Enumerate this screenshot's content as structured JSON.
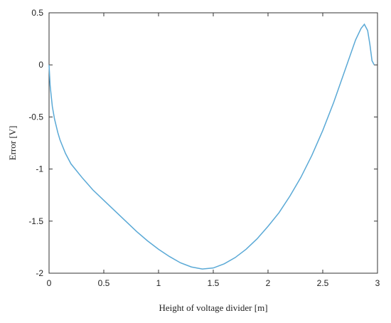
{
  "chart_data": {
    "type": "line",
    "x_label": "Height of voltage divider [m]",
    "y_label": "Error [V]",
    "x": [
      0,
      0.01,
      0.03,
      0.05,
      0.08,
      0.1,
      0.15,
      0.2,
      0.3,
      0.4,
      0.5,
      0.6,
      0.7,
      0.8,
      0.9,
      1.0,
      1.1,
      1.2,
      1.3,
      1.4,
      1.5,
      1.6,
      1.7,
      1.8,
      1.9,
      2.0,
      2.1,
      2.2,
      2.3,
      2.4,
      2.5,
      2.6,
      2.7,
      2.8,
      2.85,
      2.88,
      2.91,
      2.93,
      2.95,
      2.97
    ],
    "series": [
      {
        "color": "#5aa9d6",
        "values": [
          0,
          -0.2,
          -0.4,
          -0.52,
          -0.65,
          -0.72,
          -0.85,
          -0.95,
          -1.08,
          -1.2,
          -1.3,
          -1.4,
          -1.5,
          -1.6,
          -1.69,
          -1.77,
          -1.84,
          -1.9,
          -1.94,
          -1.96,
          -1.95,
          -1.91,
          -1.85,
          -1.77,
          -1.67,
          -1.55,
          -1.42,
          -1.26,
          -1.08,
          -0.87,
          -0.63,
          -0.36,
          -0.06,
          0.24,
          0.35,
          0.39,
          0.33,
          0.2,
          0.04,
          0
        ]
      }
    ],
    "xlim": [
      0,
      3
    ],
    "xticks": [
      0,
      0.5,
      1,
      1.5,
      2,
      2.5,
      3
    ],
    "ylim": [
      -2,
      0.5
    ],
    "yticks": [
      -2,
      -1.5,
      -1,
      -0.5,
      0,
      0.5
    ],
    "grid": false
  }
}
